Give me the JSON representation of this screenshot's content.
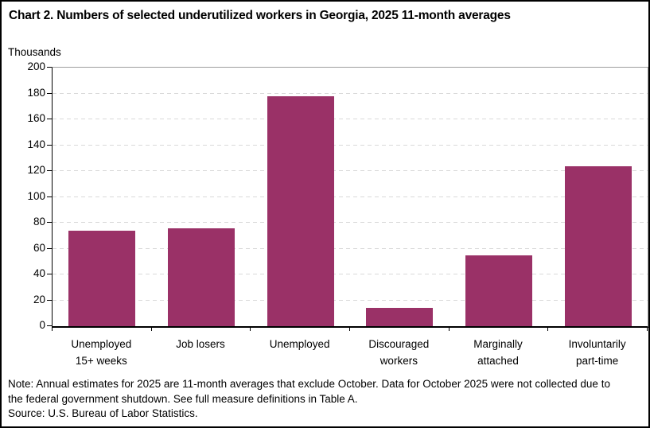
{
  "title": "Chart 2. Numbers of selected underutilized workers in Georgia, 2025 11-month averages",
  "chart_data": {
    "type": "bar",
    "title": "Chart 2. Numbers of selected underutilized workers in Georgia, 2025 11-month averages",
    "ylabel": "Thousands",
    "xlabel": "",
    "categories": [
      "Unemployed\n15+ weeks",
      "Job losers",
      "Unemployed",
      "Discouraged\nworkers",
      "Marginally\nattached",
      "Involuntarily\npart-time"
    ],
    "values": [
      74,
      76,
      178,
      14,
      55,
      124
    ],
    "ylim": [
      0,
      200
    ],
    "ytick_step": 20,
    "ytick_labels": [
      "0",
      "20",
      "40",
      "60",
      "80",
      "100",
      "120",
      "140",
      "160",
      "180",
      "200"
    ],
    "grid": "horizontal-dashed",
    "legend": "none",
    "colors": {
      "bar": "#9a3167",
      "gridline": "#d9d9d9",
      "axis": "#000000",
      "plot_border": "#9e9e9e"
    }
  },
  "note": "Note: Annual estimates for 2025 are 11-month averages that exclude October. Data for October 2025 were not collected due to the federal government shutdown. See full measure definitions in Table A.",
  "source": "Source: U.S. Bureau of Labor Statistics."
}
